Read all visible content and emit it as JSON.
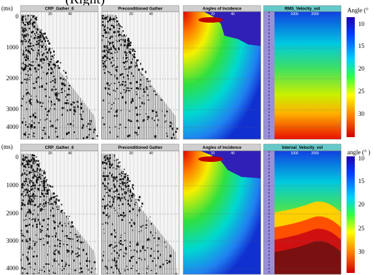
{
  "caption": "(Right)",
  "rows": [
    {
      "y_unit": "(ms)",
      "yticks": [
        "0",
        "1000",
        "2000",
        "3000",
        "4000"
      ],
      "panels": [
        {
          "title": "CRP_Gather_6",
          "xticks": [
            "20",
            "40"
          ]
        },
        {
          "title": "Preconditioned Gather",
          "xticks": [
            "20",
            "40"
          ]
        },
        {
          "title": "Angles of Incidence",
          "xticks": [
            "20",
            "40"
          ]
        },
        {
          "title": "RMS_Velocity_vol",
          "xticks": [
            "1000",
            "2000"
          ]
        }
      ],
      "colorbar": {
        "label": "Angle (°",
        "ticks": [
          "10",
          "15",
          "20",
          "25",
          "30"
        ]
      }
    },
    {
      "y_unit": "(ms)",
      "yticks": [
        "0",
        "1000",
        "2000",
        "3000",
        "4000"
      ],
      "panels": [
        {
          "title": "CRP_Gather_6",
          "xticks": [
            "20",
            "40"
          ]
        },
        {
          "title": "Preconditioned Gather",
          "xticks": [
            "20",
            "40"
          ]
        },
        {
          "title": "Angles of Incidence",
          "xticks": [
            "20",
            "40"
          ]
        },
        {
          "title": "Interval_Velocity_vol",
          "xticks": [
            "1000",
            "2000"
          ]
        }
      ],
      "colorbar": {
        "label": "angle (° )",
        "ticks": [
          "10",
          "15",
          "20",
          "25",
          "30"
        ]
      }
    }
  ]
}
